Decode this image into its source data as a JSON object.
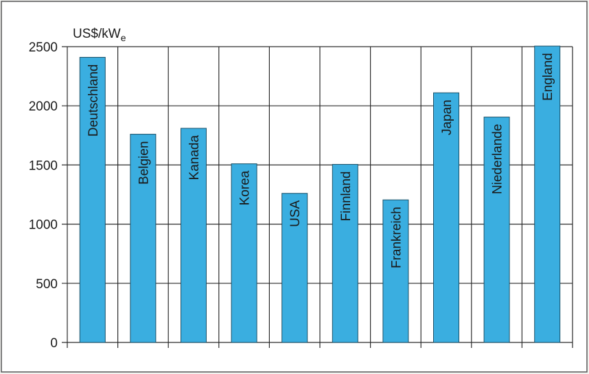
{
  "chart_data": {
    "type": "bar",
    "categories": [
      "Deutschland",
      "Belgien",
      "Kanada",
      "Korea",
      "USA",
      "Finnland",
      "Frankreich",
      "Japan",
      "Niederlande",
      "England"
    ],
    "values": [
      2410,
      1760,
      1810,
      1510,
      1260,
      1505,
      1205,
      2110,
      1905,
      2505
    ],
    "ylabel_main": "US$/kW",
    "ylabel_sub": "e",
    "ylim": [
      0,
      2500
    ],
    "yticks": [
      0,
      500,
      1000,
      1500,
      2000,
      2500
    ],
    "grid": true,
    "colors": {
      "bar": "#3aaee0",
      "bar_edge": "#1b4f66",
      "grid": "#2a2a2a",
      "background": "#ffffff"
    }
  }
}
